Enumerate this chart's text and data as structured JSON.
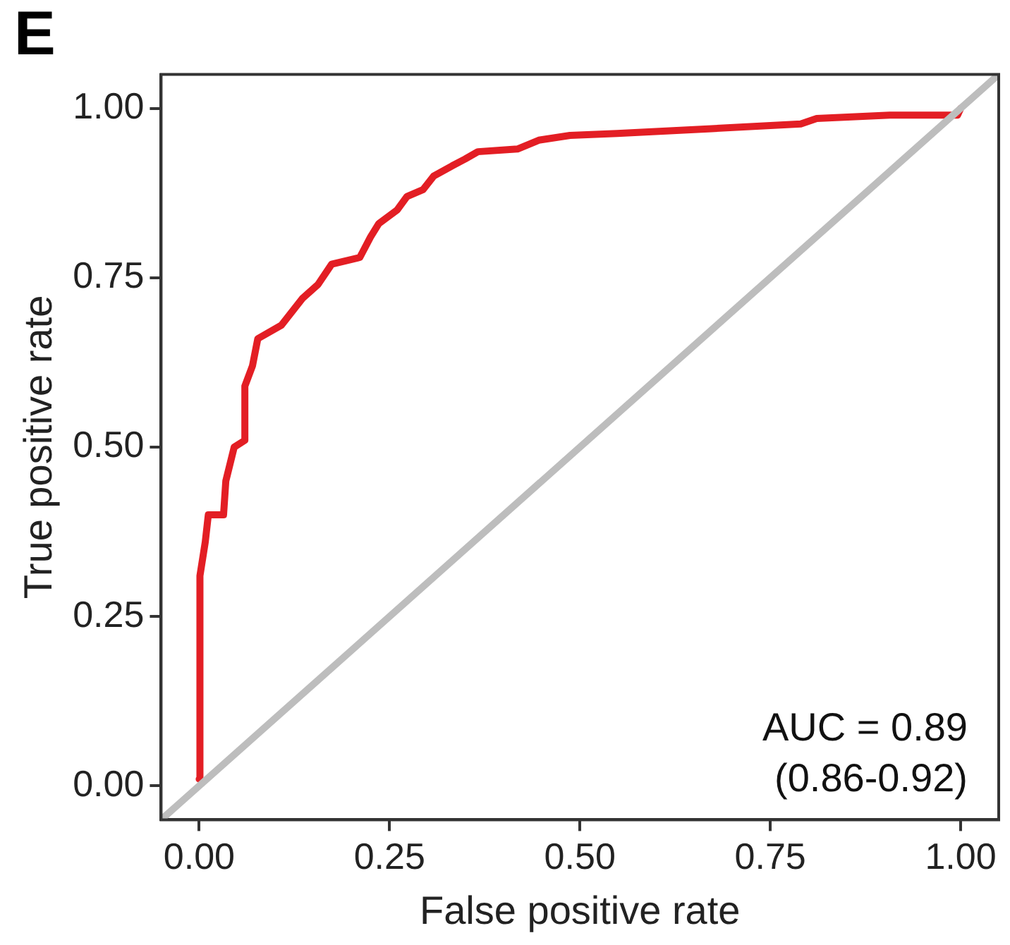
{
  "chart_data": {
    "type": "line",
    "title": "E",
    "xlabel": "False positive rate",
    "ylabel": "True positive rate",
    "xlim": [
      -0.05,
      1.05
    ],
    "ylim": [
      -0.05,
      1.05
    ],
    "xticks": [
      {
        "value": 0,
        "label": "0.00"
      },
      {
        "value": 0.25,
        "label": "0.25"
      },
      {
        "value": 0.5,
        "label": "0.50"
      },
      {
        "value": 0.75,
        "label": "0.75"
      },
      {
        "value": 1,
        "label": "1.00"
      }
    ],
    "yticks": [
      {
        "value": 0,
        "label": "0.00"
      },
      {
        "value": 0.25,
        "label": "0.25"
      },
      {
        "value": 0.5,
        "label": "0.50"
      },
      {
        "value": 0.75,
        "label": "0.75"
      },
      {
        "value": 1,
        "label": "1.00"
      }
    ],
    "grid": false,
    "legend": false,
    "marker": "none",
    "line_style": "solid",
    "annotations": [
      "AUC = 0.89",
      "(0.86-0.92)"
    ],
    "series": [
      {
        "color": "#bdbdbd",
        "x": [
          -0.05,
          1.05
        ],
        "values": [
          -0.05,
          1.05
        ]
      },
      {
        "color": "#e31e24",
        "x": [
          0,
          0.001,
          0.008,
          0.012,
          0.032,
          0.035,
          0.046,
          0.06,
          0.06,
          0.07,
          0.077,
          0.108,
          0.136,
          0.156,
          0.174,
          0.211,
          0.225,
          0.236,
          0.26,
          0.273,
          0.294,
          0.308,
          0.332,
          0.349,
          0.366,
          0.418,
          0.446,
          0.487,
          0.549,
          0.673,
          0.79,
          0.811,
          0.907,
          0.996,
          1
        ],
        "values": [
          0.01,
          0.31,
          0.36,
          0.4,
          0.4,
          0.45,
          0.5,
          0.51,
          0.59,
          0.62,
          0.66,
          0.68,
          0.72,
          0.74,
          0.77,
          0.78,
          0.81,
          0.83,
          0.85,
          0.87,
          0.88,
          0.9,
          0.915,
          0.925,
          0.936,
          0.94,
          0.953,
          0.96,
          0.963,
          0.97,
          0.977,
          0.985,
          0.99,
          0.99,
          1
        ]
      }
    ]
  }
}
